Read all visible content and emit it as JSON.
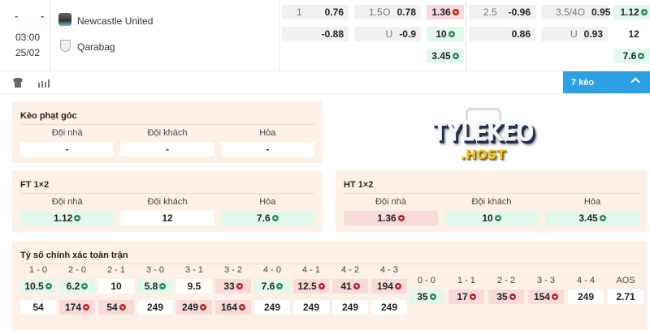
{
  "match": {
    "score_home": "-",
    "score_away": "-",
    "time": "03:00",
    "date": "25/02",
    "home": "Newcastle United",
    "away": "Qarabag"
  },
  "odds": {
    "ah_ft": [
      {
        "label": "1",
        "value": "0.76"
      },
      {
        "label": "",
        "value": "-0.88"
      }
    ],
    "ou_ft": [
      {
        "label": "1.5",
        "side": "O",
        "value": "0.78"
      },
      {
        "label": "",
        "side": "U",
        "value": "-0.9"
      }
    ],
    "x12_ht": [
      {
        "value": "1.36",
        "state": "down"
      },
      {
        "value": "10",
        "state": "up"
      },
      {
        "value": "3.45",
        "state": "up"
      }
    ],
    "ah_2": [
      {
        "label": "2.5",
        "value": "-0.96"
      },
      {
        "label": "",
        "value": "0.86"
      }
    ],
    "ou_2": [
      {
        "label": "3.5/4",
        "side": "O",
        "value": "0.95"
      },
      {
        "label": "",
        "side": "U",
        "value": "0.93"
      }
    ],
    "x12_ft": [
      {
        "value": "1.12",
        "state": "up"
      },
      {
        "value": "12",
        "state": "none"
      },
      {
        "value": "7.6",
        "state": "up"
      }
    ]
  },
  "toolbar": {
    "icons": [
      "jersey-icon",
      "stats-icon"
    ],
    "more_label": "7 kèo",
    "accent": "#2d9fe3"
  },
  "corner": {
    "title": "Kèo phạt góc",
    "cols": [
      "Đội nhà",
      "Đội khách",
      "Hòa"
    ],
    "values": [
      {
        "value": "-",
        "state": "none"
      },
      {
        "value": "-",
        "state": "none"
      },
      {
        "value": "-",
        "state": "none"
      }
    ]
  },
  "ft": {
    "title": "FT 1×2",
    "cols": [
      "Đội nhà",
      "Đội khách",
      "Hòa"
    ],
    "values": [
      {
        "value": "1.12",
        "state": "up"
      },
      {
        "value": "12",
        "state": "none"
      },
      {
        "value": "7.6",
        "state": "up"
      }
    ]
  },
  "ht": {
    "title": "HT 1×2",
    "cols": [
      "Đội nhà",
      "Đội khách",
      "Hòa"
    ],
    "values": [
      {
        "value": "1.36",
        "state": "down"
      },
      {
        "value": "10",
        "state": "up"
      },
      {
        "value": "3.45",
        "state": "up"
      }
    ]
  },
  "logo": {
    "text1": "TYLEKEO",
    "text2": ".HOST"
  },
  "correct_score": {
    "title": "Tỷ số chính xác toàn trận",
    "left": [
      {
        "score": "1 - 0",
        "home": {
          "value": "10.5",
          "state": "up"
        },
        "away": {
          "value": "54",
          "state": "none"
        }
      },
      {
        "score": "2 - 0",
        "home": {
          "value": "6.2",
          "state": "up"
        },
        "away": {
          "value": "174",
          "state": "down"
        }
      },
      {
        "score": "2 - 1",
        "home": {
          "value": "10",
          "state": "none"
        },
        "away": {
          "value": "54",
          "state": "down"
        }
      },
      {
        "score": "3 - 0",
        "home": {
          "value": "5.8",
          "state": "up"
        },
        "away": {
          "value": "249",
          "state": "none"
        }
      },
      {
        "score": "3 - 1",
        "home": {
          "value": "9.5",
          "state": "none"
        },
        "away": {
          "value": "249",
          "state": "down"
        }
      },
      {
        "score": "3 - 2",
        "home": {
          "value": "33",
          "state": "down"
        },
        "away": {
          "value": "164",
          "state": "down"
        }
      },
      {
        "score": "4 - 0",
        "home": {
          "value": "7.6",
          "state": "up"
        },
        "away": {
          "value": "249",
          "state": "none"
        }
      },
      {
        "score": "4 - 1",
        "home": {
          "value": "12.5",
          "state": "down"
        },
        "away": {
          "value": "249",
          "state": "none"
        }
      },
      {
        "score": "4 - 2",
        "home": {
          "value": "41",
          "state": "down"
        },
        "away": {
          "value": "249",
          "state": "none"
        }
      },
      {
        "score": "4 - 3",
        "home": {
          "value": "194",
          "state": "down"
        },
        "away": {
          "value": "249",
          "state": "none"
        }
      }
    ],
    "draws": [
      {
        "score": "0 - 0",
        "value": "35",
        "state": "up"
      },
      {
        "score": "1 - 1",
        "value": "17",
        "state": "down"
      },
      {
        "score": "2 - 2",
        "value": "35",
        "state": "down"
      },
      {
        "score": "3 - 3",
        "value": "154",
        "state": "down"
      },
      {
        "score": "4 - 4",
        "value": "249",
        "state": "none"
      },
      {
        "score": "AOS",
        "value": "2.71",
        "state": "none"
      }
    ]
  }
}
